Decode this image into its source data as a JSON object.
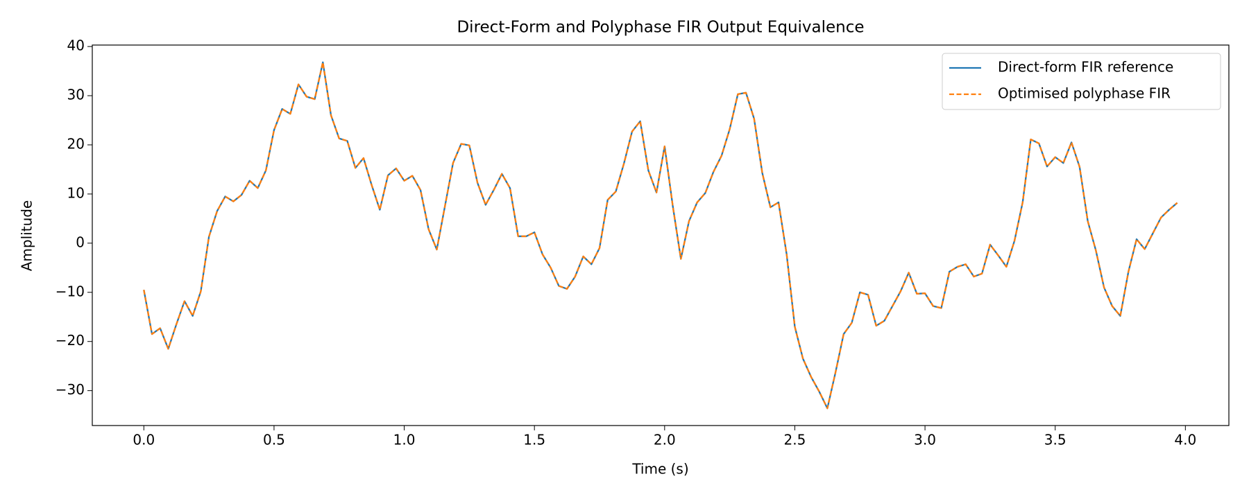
{
  "chart_data": {
    "type": "line",
    "title": "Direct-Form and Polyphase FIR Output Equivalence",
    "x_label": "Time (s)",
    "y_label": "Amplitude",
    "x": [
      0.0,
      0.03125,
      0.0625,
      0.09375,
      0.125,
      0.15625,
      0.1875,
      0.21875,
      0.25,
      0.28125,
      0.3125,
      0.34375,
      0.375,
      0.40625,
      0.4375,
      0.46875,
      0.5,
      0.53125,
      0.5625,
      0.59375,
      0.625,
      0.65625,
      0.6875,
      0.71875,
      0.75,
      0.78125,
      0.8125,
      0.84375,
      0.875,
      0.90625,
      0.9375,
      0.96875,
      1.0,
      1.03125,
      1.0625,
      1.09375,
      1.125,
      1.15625,
      1.1875,
      1.21875,
      1.25,
      1.28125,
      1.3125,
      1.34375,
      1.375,
      1.40625,
      1.4375,
      1.46875,
      1.5,
      1.53125,
      1.5625,
      1.59375,
      1.625,
      1.65625,
      1.6875,
      1.71875,
      1.75,
      1.78125,
      1.8125,
      1.84375,
      1.875,
      1.90625,
      1.9375,
      1.96875,
      2.0,
      2.03125,
      2.0625,
      2.09375,
      2.125,
      2.15625,
      2.1875,
      2.21875,
      2.25,
      2.28125,
      2.3125,
      2.34375,
      2.375,
      2.40625,
      2.4375,
      2.46875,
      2.5,
      2.53125,
      2.5625,
      2.59375,
      2.625,
      2.65625,
      2.6875,
      2.71875,
      2.75,
      2.78125,
      2.8125,
      2.84375,
      2.875,
      2.90625,
      2.9375,
      2.96875,
      3.0,
      3.03125,
      3.0625,
      3.09375,
      3.125,
      3.15625,
      3.1875,
      3.21875,
      3.25,
      3.28125,
      3.3125,
      3.34375,
      3.375,
      3.40625,
      3.4375,
      3.46875,
      3.5,
      3.53125,
      3.5625,
      3.59375,
      3.625,
      3.65625,
      3.6875,
      3.71875,
      3.75,
      3.78125,
      3.8125,
      3.84375,
      3.875,
      3.90625,
      3.9375,
      3.96875
    ],
    "series": [
      {
        "name": "Direct-form FIR reference",
        "color": "#1f77b4",
        "dash": false,
        "values": [
          -9.5,
          -18.5,
          -17.3,
          -21.5,
          -16.5,
          -11.8,
          -14.8,
          -9.8,
          1.3,
          6.5,
          9.5,
          8.5,
          9.8,
          12.7,
          11.2,
          14.8,
          23,
          27.3,
          26.3,
          32.3,
          29.8,
          29.3,
          36.8,
          26,
          21.3,
          20.8,
          15.3,
          17.3,
          11.8,
          6.8,
          13.8,
          15.2,
          12.7,
          13.7,
          10.8,
          2.8,
          -1.3,
          7.5,
          16.3,
          20.2,
          19.9,
          12.3,
          7.8,
          10.8,
          14.1,
          11.2,
          1.4,
          1.4,
          2.2,
          -2.3,
          -5,
          -8.7,
          -9.3,
          -6.8,
          -2.7,
          -4.3,
          -1,
          8.8,
          10.5,
          16.2,
          22.7,
          24.8,
          14.8,
          10.3,
          19.7,
          7.6,
          -3.2,
          4.5,
          8.3,
          10.2,
          14.5,
          17.8,
          23.2,
          30.3,
          30.6,
          25.3,
          14.3,
          7.3,
          8.3,
          -2.3,
          -17,
          -23.5,
          -27.2,
          -30.2,
          -33.6,
          -26.3,
          -18.5,
          -16.2,
          -10,
          -10.5,
          -16.8,
          -15.8,
          -12.8,
          -9.8,
          -6,
          -10.3,
          -10.2,
          -12.8,
          -13.2,
          -5.8,
          -4.8,
          -4.3,
          -6.8,
          -6.2,
          -0.3,
          -2.5,
          -4.8,
          0.5,
          8.3,
          21.1,
          20.3,
          15.6,
          17.5,
          16.3,
          20.5,
          15.5,
          4.5,
          -1.5,
          -9,
          -12.8,
          -14.8,
          -5.8,
          0.8,
          -1.2,
          2,
          5.2,
          6.8,
          8.2
        ]
      },
      {
        "name": "Optimised polyphase FIR",
        "color": "#ff7f0e",
        "dash": true,
        "values": [
          -9.5,
          -18.5,
          -17.3,
          -21.5,
          -16.5,
          -11.8,
          -14.8,
          -9.8,
          1.3,
          6.5,
          9.5,
          8.5,
          9.8,
          12.7,
          11.2,
          14.8,
          23,
          27.3,
          26.3,
          32.3,
          29.8,
          29.3,
          36.8,
          26,
          21.3,
          20.8,
          15.3,
          17.3,
          11.8,
          6.8,
          13.8,
          15.2,
          12.7,
          13.7,
          10.8,
          2.8,
          -1.3,
          7.5,
          16.3,
          20.2,
          19.9,
          12.3,
          7.8,
          10.8,
          14.1,
          11.2,
          1.4,
          1.4,
          2.2,
          -2.3,
          -5,
          -8.7,
          -9.3,
          -6.8,
          -2.7,
          -4.3,
          -1,
          8.8,
          10.5,
          16.2,
          22.7,
          24.8,
          14.8,
          10.3,
          19.7,
          7.6,
          -3.2,
          4.5,
          8.3,
          10.2,
          14.5,
          17.8,
          23.2,
          30.3,
          30.6,
          25.3,
          14.3,
          7.3,
          8.3,
          -2.3,
          -17,
          -23.5,
          -27.2,
          -30.2,
          -33.6,
          -26.3,
          -18.5,
          -16.2,
          -10,
          -10.5,
          -16.8,
          -15.8,
          -12.8,
          -9.8,
          -6,
          -10.3,
          -10.2,
          -12.8,
          -13.2,
          -5.8,
          -4.8,
          -4.3,
          -6.8,
          -6.2,
          -0.3,
          -2.5,
          -4.8,
          0.5,
          8.3,
          21.1,
          20.3,
          15.6,
          17.5,
          16.3,
          20.5,
          15.5,
          4.5,
          -1.5,
          -9,
          -12.8,
          -14.8,
          -5.8,
          0.8,
          -1.2,
          2,
          5.2,
          6.8,
          8.2
        ]
      }
    ],
    "xlim": [
      -0.198,
      4.167
    ],
    "ylim": [
      -37.1,
      40.3
    ],
    "xticks": [
      {
        "value": 0,
        "label": "0.0"
      },
      0.5,
      {
        "value": 1,
        "label": "1.0"
      },
      1.5,
      {
        "value": 2,
        "label": "2.0"
      },
      2.5,
      {
        "value": 3,
        "label": "3.0"
      },
      3.5,
      {
        "value": 4,
        "label": "4.0"
      }
    ],
    "yticks": [
      {
        "value": -30,
        "label": "−30"
      },
      {
        "value": -20,
        "label": "−20"
      },
      {
        "value": -10,
        "label": "−10"
      },
      0,
      10,
      20,
      30,
      40
    ],
    "grid": false,
    "legend": "upper right"
  }
}
